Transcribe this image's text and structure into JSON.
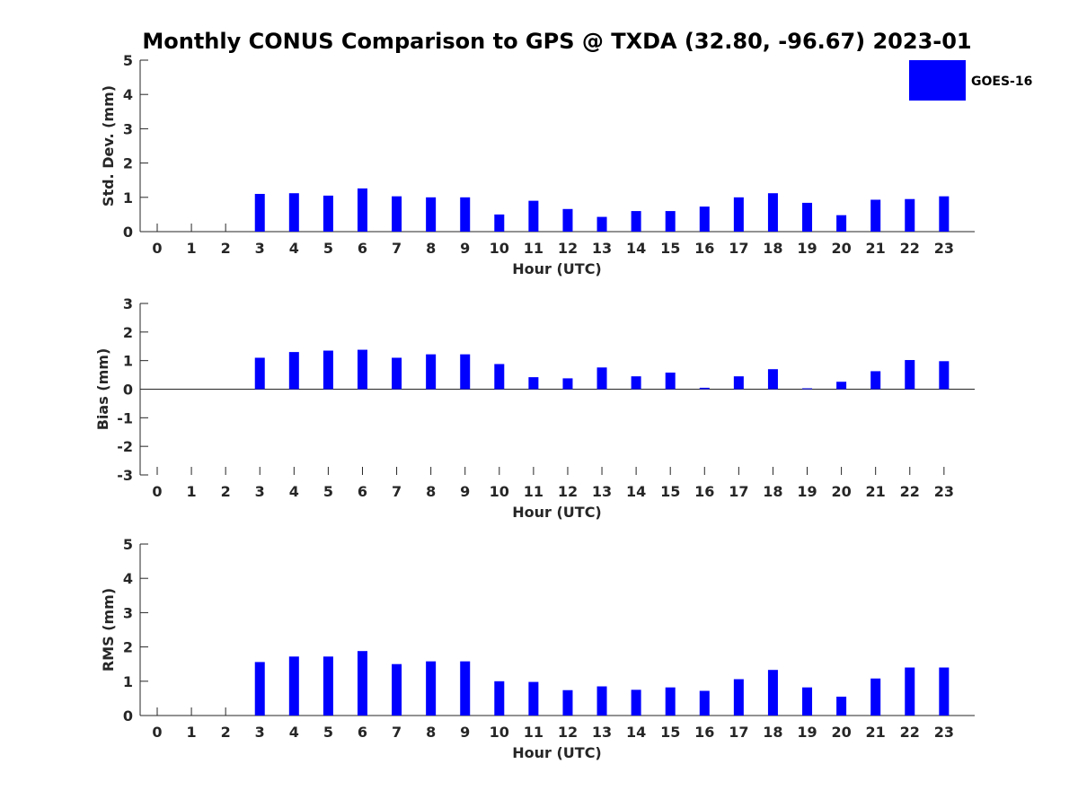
{
  "title": "Monthly CONUS Comparison to GPS @ TXDA (32.80, -96.67) 2023-01",
  "legend": {
    "label": "GOES-16",
    "color": "#0000ff",
    "placement": "top-right"
  },
  "chart_data": [
    {
      "type": "bar",
      "name": "std-dev",
      "ylabel": "Std. Dev. (mm)",
      "xlabel": "Hour (UTC)",
      "categories": [
        "0",
        "1",
        "2",
        "3",
        "4",
        "5",
        "6",
        "7",
        "8",
        "9",
        "10",
        "11",
        "12",
        "13",
        "14",
        "15",
        "16",
        "17",
        "18",
        "19",
        "20",
        "21",
        "22",
        "23"
      ],
      "series": [
        {
          "name": "GOES-16",
          "values": [
            null,
            null,
            null,
            1.1,
            1.12,
            1.05,
            1.26,
            1.03,
            1.0,
            1.0,
            0.5,
            0.9,
            0.66,
            0.43,
            0.6,
            0.6,
            0.73,
            1.0,
            1.12,
            0.84,
            0.48,
            0.93,
            0.95,
            1.03
          ]
        }
      ],
      "ylim": [
        0,
        5
      ],
      "yticks": [
        "0",
        "1",
        "2",
        "3",
        "4",
        "5"
      ],
      "color": "#0000ff"
    },
    {
      "type": "bar",
      "name": "bias",
      "ylabel": "Bias (mm)",
      "xlabel": "Hour (UTC)",
      "categories": [
        "0",
        "1",
        "2",
        "3",
        "4",
        "5",
        "6",
        "7",
        "8",
        "9",
        "10",
        "11",
        "12",
        "13",
        "14",
        "15",
        "16",
        "17",
        "18",
        "19",
        "20",
        "21",
        "22",
        "23"
      ],
      "series": [
        {
          "name": "GOES-16",
          "values": [
            null,
            null,
            null,
            1.1,
            1.3,
            1.35,
            1.38,
            1.1,
            1.22,
            1.22,
            0.88,
            0.42,
            0.38,
            0.76,
            0.45,
            0.58,
            0.05,
            0.45,
            0.7,
            0.03,
            0.26,
            0.63,
            1.02,
            0.98
          ]
        }
      ],
      "ylim": [
        -3,
        3
      ],
      "yticks": [
        "-3",
        "-2",
        "-1",
        "0",
        "1",
        "2",
        "3"
      ],
      "color": "#0000ff"
    },
    {
      "type": "bar",
      "name": "rms",
      "ylabel": "RMS (mm)",
      "xlabel": "Hour (UTC)",
      "categories": [
        "0",
        "1",
        "2",
        "3",
        "4",
        "5",
        "6",
        "7",
        "8",
        "9",
        "10",
        "11",
        "12",
        "13",
        "14",
        "15",
        "16",
        "17",
        "18",
        "19",
        "20",
        "21",
        "22",
        "23"
      ],
      "series": [
        {
          "name": "GOES-16",
          "values": [
            null,
            null,
            null,
            1.56,
            1.72,
            1.72,
            1.88,
            1.5,
            1.58,
            1.58,
            1.0,
            0.98,
            0.74,
            0.85,
            0.75,
            0.82,
            0.72,
            1.06,
            1.33,
            0.82,
            0.55,
            1.08,
            1.4,
            1.4
          ]
        }
      ],
      "ylim": [
        0,
        5
      ],
      "yticks": [
        "0",
        "1",
        "2",
        "3",
        "4",
        "5"
      ],
      "color": "#0000ff"
    }
  ]
}
